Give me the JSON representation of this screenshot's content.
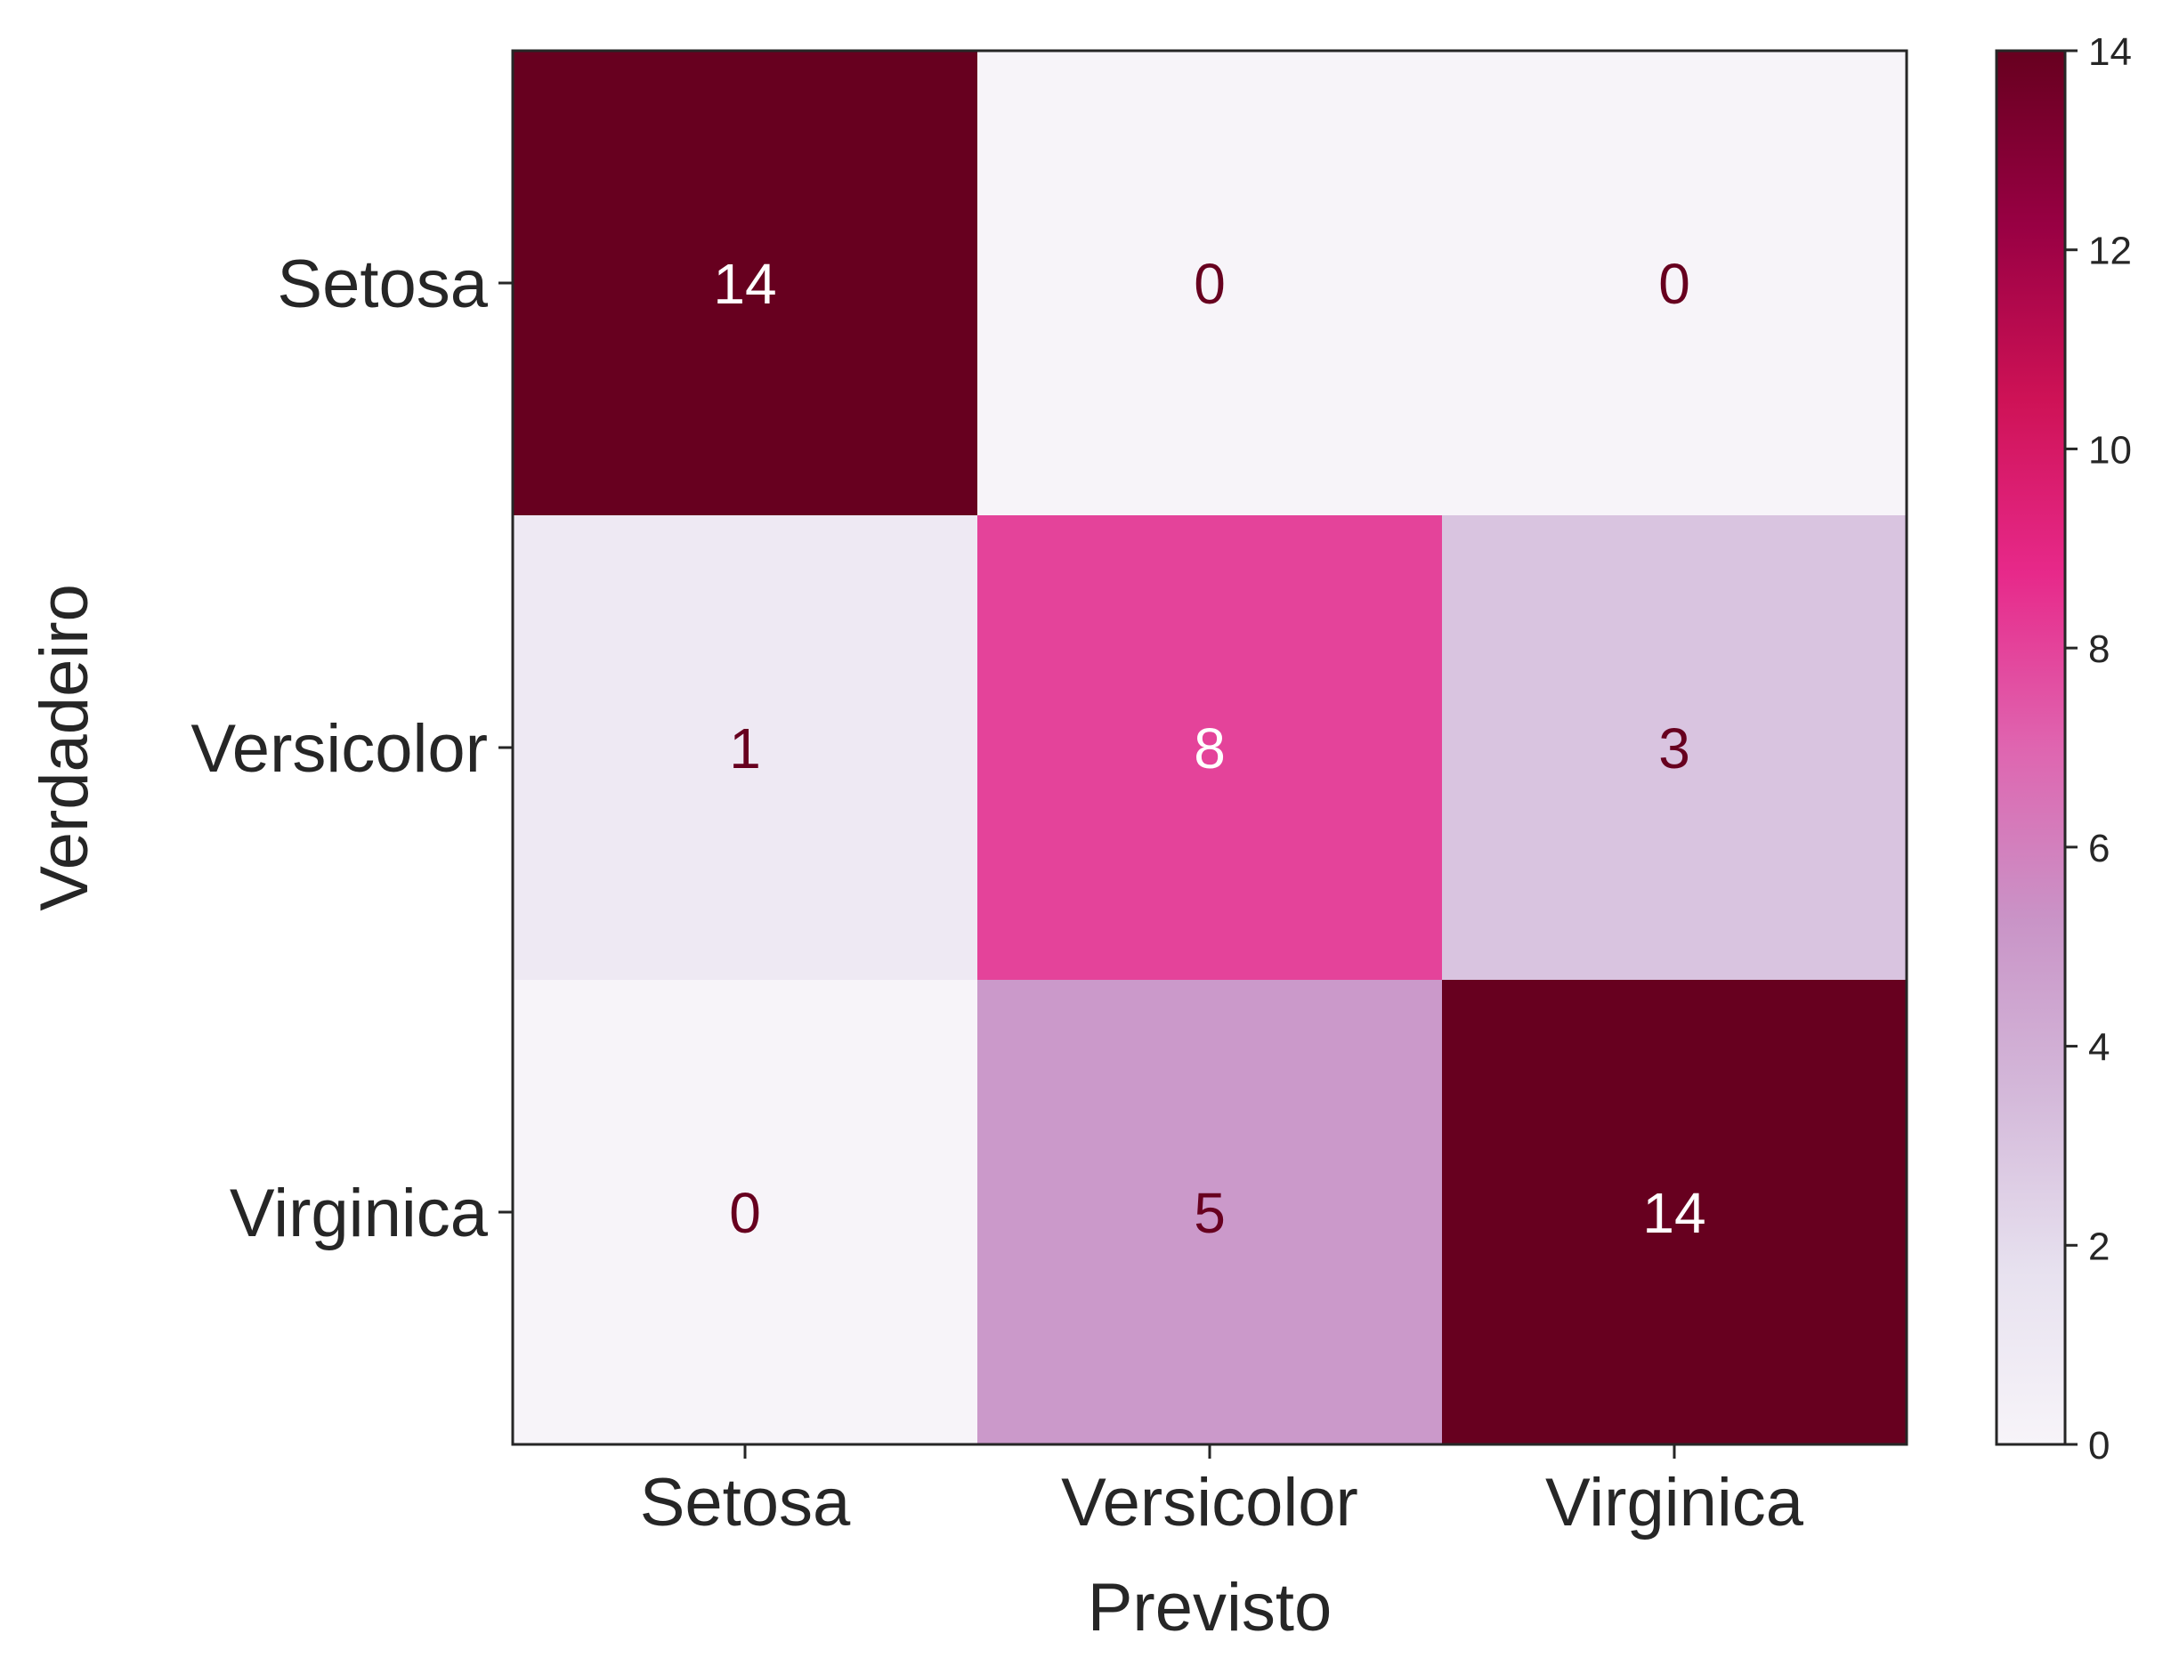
{
  "chart_data": {
    "type": "heatmap",
    "title": "",
    "xlabel": "Previsto",
    "ylabel": "Verdadeiro",
    "x_categories": [
      "Setosa",
      "Versicolor",
      "Virginica"
    ],
    "y_categories": [
      "Setosa",
      "Versicolor",
      "Virginica"
    ],
    "matrix": [
      [
        14,
        0,
        0
      ],
      [
        1,
        8,
        3
      ],
      [
        0,
        5,
        14
      ]
    ],
    "colorbar": {
      "range": [
        0,
        14
      ],
      "ticks": [
        0,
        2,
        4,
        6,
        8,
        10,
        12,
        14
      ],
      "colormap": "PuRd"
    },
    "colors": {
      "axis": "#262626",
      "text_dark": "#67001f",
      "text_light": "#ffffff"
    }
  }
}
